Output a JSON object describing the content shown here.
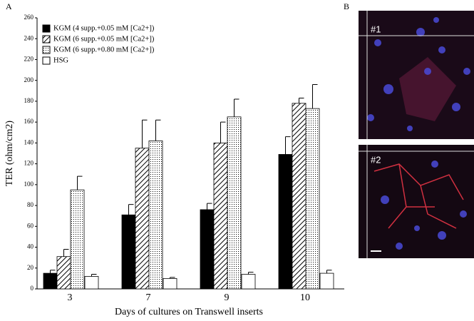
{
  "panel_labels": [
    "A",
    "B"
  ],
  "image_labels": [
    "#1",
    "#2"
  ],
  "chart_data": {
    "type": "bar",
    "y_label": "TER (ohm/cm2)",
    "x_label": "Days of cultures on Transwell inserts",
    "categories": [
      "3",
      "7",
      "9",
      "10"
    ],
    "ylim": [
      0,
      260
    ],
    "yticks": [
      0,
      20,
      40,
      60,
      80,
      100,
      120,
      140,
      160,
      180,
      200,
      220,
      240,
      260
    ],
    "legend": "top-left",
    "series": [
      {
        "name": "KGM (4 supp.+0.05 mM [Ca2+])",
        "color": "#000000",
        "pattern": "solid",
        "values": [
          15,
          71,
          76,
          129
        ],
        "errors": [
          3,
          10,
          6,
          17
        ]
      },
      {
        "name": "KGM (6 supp.+0.05 mM [Ca2+])",
        "color": "#000000",
        "pattern": "hatch",
        "values": [
          31,
          135,
          140,
          178
        ],
        "errors": [
          7,
          27,
          20,
          5
        ]
      },
      {
        "name": "KGM (6 supp.+0.80 mM [Ca2+])",
        "color": "#000000",
        "pattern": "dots",
        "values": [
          95,
          142,
          165,
          173
        ],
        "errors": [
          13,
          20,
          17,
          23
        ]
      },
      {
        "name": "HSG",
        "color": "#000000",
        "pattern": "none",
        "values": [
          12,
          10,
          14,
          15
        ],
        "errors": [
          2,
          1,
          2,
          3
        ]
      }
    ]
  }
}
